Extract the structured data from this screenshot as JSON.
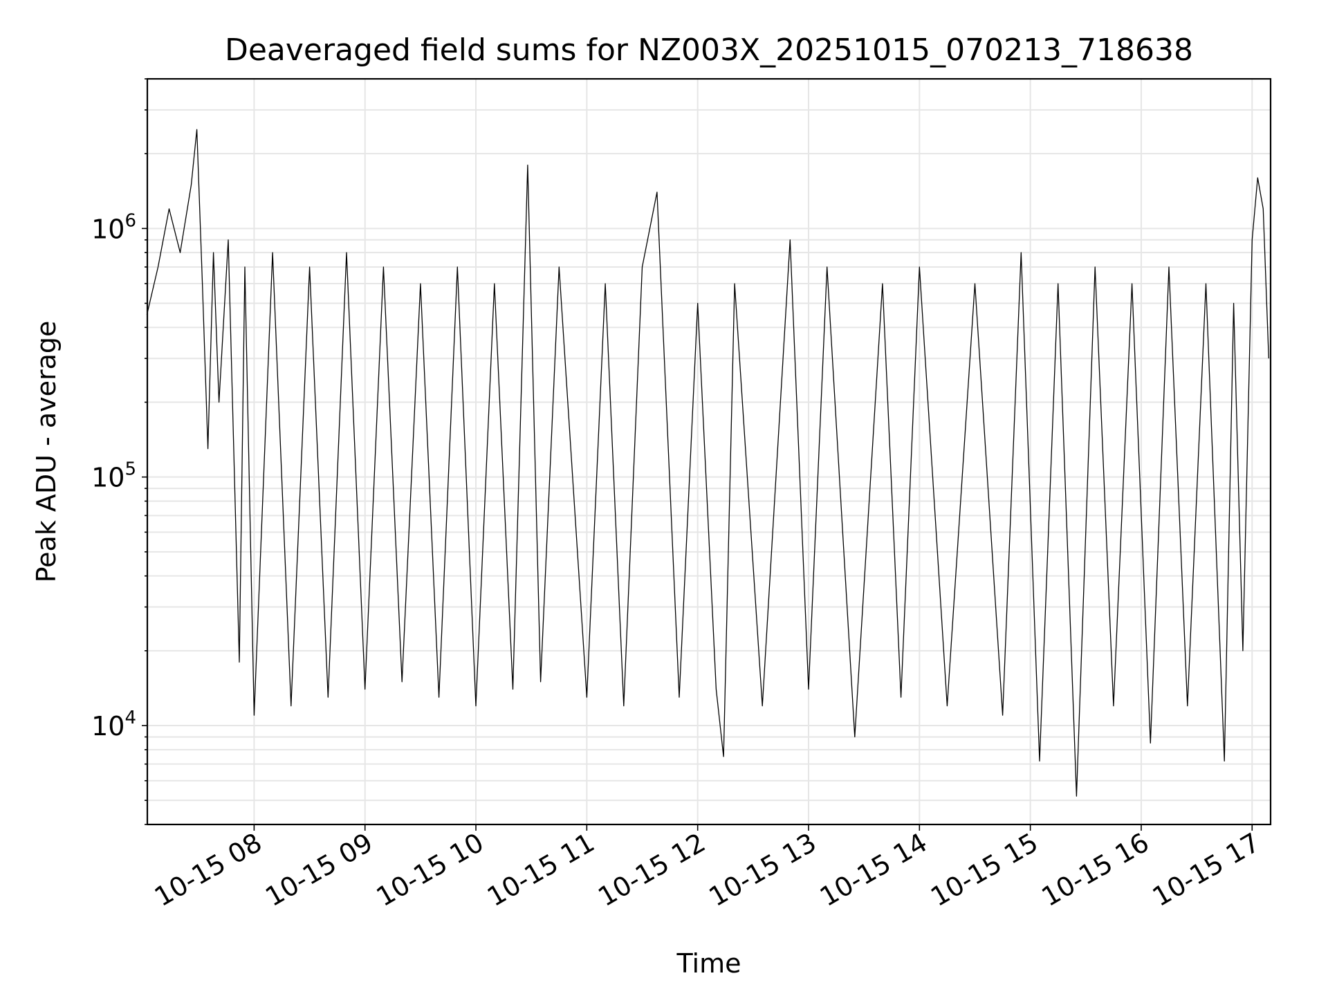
{
  "chart_data": {
    "type": "line",
    "title": "Deaveraged field sums for NZ003X_20251015_070213_718638",
    "xlabel": "Time",
    "ylabel": "Peak ADU - average",
    "yscale": "log",
    "ylim": [
      4000,
      4000000
    ],
    "xlim": [
      "2025-10-15 07:02:13",
      "2025-10-15 17:10:00"
    ],
    "grid": true,
    "line_color": "#000000",
    "x_ticks": [
      {
        "label": "10-15 08",
        "value": "2025-10-15 08:00"
      },
      {
        "label": "10-15 09",
        "value": "2025-10-15 09:00"
      },
      {
        "label": "10-15 10",
        "value": "2025-10-15 10:00"
      },
      {
        "label": "10-15 11",
        "value": "2025-10-15 11:00"
      },
      {
        "label": "10-15 12",
        "value": "2025-10-15 12:00"
      },
      {
        "label": "10-15 13",
        "value": "2025-10-15 13:00"
      },
      {
        "label": "10-15 14",
        "value": "2025-10-15 14:00"
      },
      {
        "label": "10-15 15",
        "value": "2025-10-15 15:00"
      },
      {
        "label": "10-15 16",
        "value": "2025-10-15 16:00"
      },
      {
        "label": "10-15 17",
        "value": "2025-10-15 17:00"
      }
    ],
    "y_ticks": [
      {
        "base": "10",
        "exp": "4",
        "value": 10000
      },
      {
        "base": "10",
        "exp": "5",
        "value": 100000
      },
      {
        "base": "10",
        "exp": "6",
        "value": 1000000
      }
    ],
    "x": [
      "2025-10-15 07:02",
      "2025-10-15 07:08",
      "2025-10-15 07:14",
      "2025-10-15 07:20",
      "2025-10-15 07:26",
      "2025-10-15 07:29",
      "2025-10-15 07:32",
      "2025-10-15 07:35",
      "2025-10-15 07:38",
      "2025-10-15 07:41",
      "2025-10-15 07:46",
      "2025-10-15 07:52",
      "2025-10-15 07:55",
      "2025-10-15 08:00",
      "2025-10-15 08:10",
      "2025-10-15 08:20",
      "2025-10-15 08:30",
      "2025-10-15 08:40",
      "2025-10-15 08:50",
      "2025-10-15 09:00",
      "2025-10-15 09:10",
      "2025-10-15 09:20",
      "2025-10-15 09:30",
      "2025-10-15 09:40",
      "2025-10-15 09:50",
      "2025-10-15 10:00",
      "2025-10-15 10:10",
      "2025-10-15 10:20",
      "2025-10-15 10:28",
      "2025-10-15 10:35",
      "2025-10-15 10:45",
      "2025-10-15 11:00",
      "2025-10-15 11:10",
      "2025-10-15 11:20",
      "2025-10-15 11:30",
      "2025-10-15 11:38",
      "2025-10-15 11:50",
      "2025-10-15 12:00",
      "2025-10-15 12:10",
      "2025-10-15 12:14",
      "2025-10-15 12:20",
      "2025-10-15 12:35",
      "2025-10-15 12:50",
      "2025-10-15 13:00",
      "2025-10-15 13:10",
      "2025-10-15 13:25",
      "2025-10-15 13:40",
      "2025-10-15 13:50",
      "2025-10-15 14:00",
      "2025-10-15 14:15",
      "2025-10-15 14:30",
      "2025-10-15 14:45",
      "2025-10-15 14:55",
      "2025-10-15 15:05",
      "2025-10-15 15:15",
      "2025-10-15 15:25",
      "2025-10-15 15:35",
      "2025-10-15 15:45",
      "2025-10-15 15:55",
      "2025-10-15 16:05",
      "2025-10-15 16:15",
      "2025-10-15 16:25",
      "2025-10-15 16:35",
      "2025-10-15 16:45",
      "2025-10-15 16:50",
      "2025-10-15 16:55",
      "2025-10-15 17:00",
      "2025-10-15 17:03",
      "2025-10-15 17:06",
      "2025-10-15 17:09"
    ],
    "series": [
      {
        "values": [
          450000,
          700000,
          1200000,
          800000,
          1500000,
          2500000,
          600000,
          130000,
          800000,
          200000,
          900000,
          18000,
          700000,
          11000,
          800000,
          12000,
          700000,
          13000,
          800000,
          14000,
          700000,
          15000,
          600000,
          13000,
          700000,
          12000,
          600000,
          14000,
          1800000,
          15000,
          700000,
          13000,
          600000,
          12000,
          700000,
          1400000,
          13000,
          500000,
          14000,
          7500,
          600000,
          12000,
          900000,
          14000,
          700000,
          9000,
          600000,
          13000,
          700000,
          12000,
          600000,
          11000,
          800000,
          7200,
          600000,
          5200,
          700000,
          12000,
          600000,
          8500,
          700000,
          12000,
          600000,
          7200,
          500000,
          20000,
          900000,
          1600000,
          1200000,
          300000
        ]
      }
    ]
  }
}
